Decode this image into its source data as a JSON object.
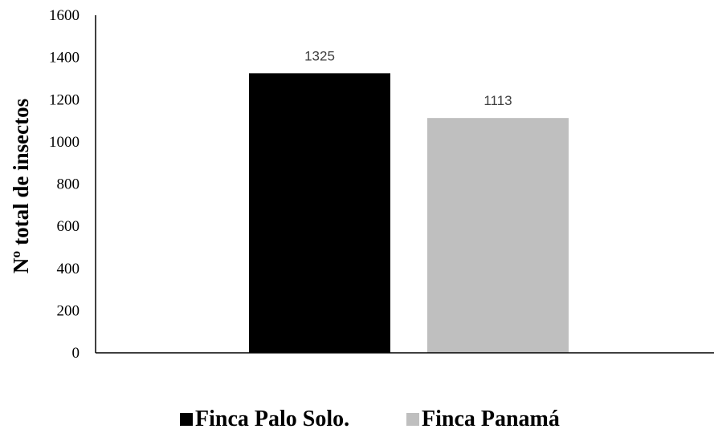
{
  "chart_data": {
    "type": "bar",
    "title": "",
    "xlabel": "",
    "ylabel": "Nº total de insectos",
    "ylim": [
      0,
      1600
    ],
    "yticks": [
      0,
      200,
      400,
      600,
      800,
      1000,
      1200,
      1400,
      1600
    ],
    "grid": false,
    "legend_position": "bottom",
    "series": [
      {
        "name": "Finca Palo Solo.",
        "value": 1325,
        "value_label": "1325",
        "color": "#000000"
      },
      {
        "name": "Finca Panamá",
        "value": 1113,
        "value_label": "1113",
        "color": "#bfbfbf"
      }
    ]
  }
}
